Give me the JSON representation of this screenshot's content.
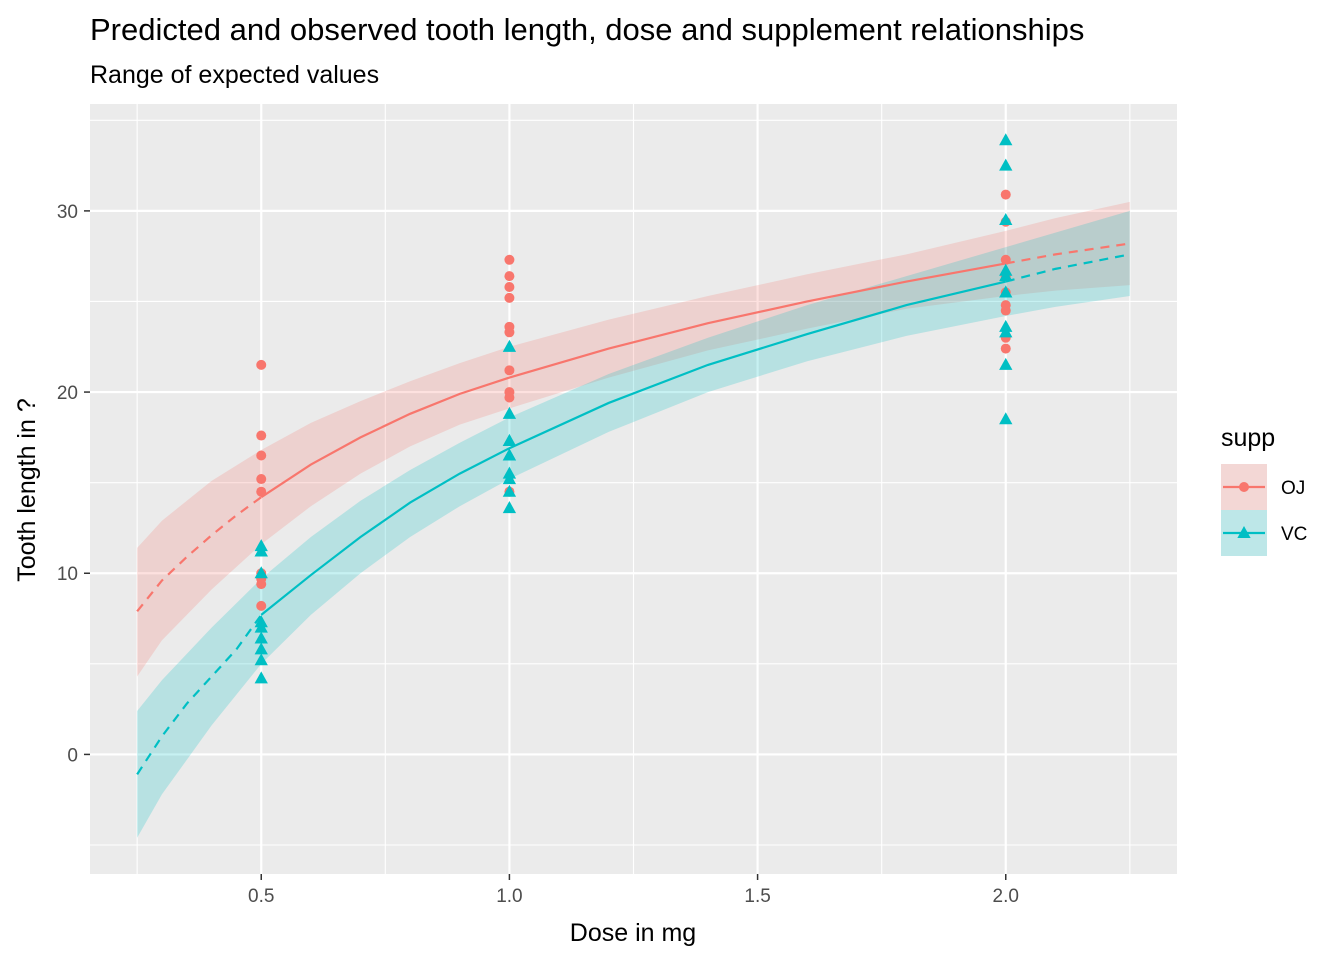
{
  "chart_data": {
    "type": "scatter",
    "title": "Predicted and observed tooth length, dose and supplement relationships",
    "subtitle": "Range of expected values",
    "xlabel": "Dose in mg",
    "ylabel": "Tooth length in ?",
    "xlim": [
      0.155,
      2.345
    ],
    "ylim": [
      -6.6,
      35.9
    ],
    "x_ticks": [
      0.5,
      1.0,
      1.5,
      2.0
    ],
    "x_tick_labels": [
      "0.5",
      "1.0",
      "1.5",
      "2.0"
    ],
    "y_ticks": [
      0,
      10,
      20,
      30
    ],
    "y_tick_labels": [
      "0",
      "10",
      "20",
      "30"
    ],
    "grid": true,
    "legend": {
      "title": "supp",
      "position": "right"
    },
    "series": [
      {
        "name": "OJ",
        "color": "#F8766D",
        "marker": "circle",
        "points": [
          {
            "x": 0.5,
            "y": 15.2
          },
          {
            "x": 0.5,
            "y": 21.5
          },
          {
            "x": 0.5,
            "y": 17.6
          },
          {
            "x": 0.5,
            "y": 9.7
          },
          {
            "x": 0.5,
            "y": 14.5
          },
          {
            "x": 0.5,
            "y": 10.0
          },
          {
            "x": 0.5,
            "y": 8.2
          },
          {
            "x": 0.5,
            "y": 9.4
          },
          {
            "x": 0.5,
            "y": 16.5
          },
          {
            "x": 0.5,
            "y": 9.7
          },
          {
            "x": 1.0,
            "y": 19.7
          },
          {
            "x": 1.0,
            "y": 23.3
          },
          {
            "x": 1.0,
            "y": 23.6
          },
          {
            "x": 1.0,
            "y": 26.4
          },
          {
            "x": 1.0,
            "y": 20.0
          },
          {
            "x": 1.0,
            "y": 25.2
          },
          {
            "x": 1.0,
            "y": 25.8
          },
          {
            "x": 1.0,
            "y": 21.2
          },
          {
            "x": 1.0,
            "y": 14.5
          },
          {
            "x": 1.0,
            "y": 27.3
          },
          {
            "x": 2.0,
            "y": 25.5
          },
          {
            "x": 2.0,
            "y": 26.4
          },
          {
            "x": 2.0,
            "y": 22.4
          },
          {
            "x": 2.0,
            "y": 24.5
          },
          {
            "x": 2.0,
            "y": 24.8
          },
          {
            "x": 2.0,
            "y": 30.9
          },
          {
            "x": 2.0,
            "y": 26.4
          },
          {
            "x": 2.0,
            "y": 27.3
          },
          {
            "x": 2.0,
            "y": 29.4
          },
          {
            "x": 2.0,
            "y": 23.0
          }
        ],
        "fit_curve": [
          {
            "x": 0.25,
            "y": 7.9
          },
          {
            "x": 0.3,
            "y": 9.6
          },
          {
            "x": 0.35,
            "y": 10.9
          },
          {
            "x": 0.4,
            "y": 12.1
          },
          {
            "x": 0.45,
            "y": 13.2
          },
          {
            "x": 0.5,
            "y": 14.2
          },
          {
            "x": 0.6,
            "y": 16.0
          },
          {
            "x": 0.7,
            "y": 17.5
          },
          {
            "x": 0.8,
            "y": 18.8
          },
          {
            "x": 0.9,
            "y": 19.9
          },
          {
            "x": 1.0,
            "y": 20.8
          },
          {
            "x": 1.2,
            "y": 22.4
          },
          {
            "x": 1.4,
            "y": 23.8
          },
          {
            "x": 1.6,
            "y": 25.0
          },
          {
            "x": 1.8,
            "y": 26.1
          },
          {
            "x": 2.0,
            "y": 27.1
          },
          {
            "x": 2.1,
            "y": 27.6
          },
          {
            "x": 2.25,
            "y": 28.2
          }
        ],
        "band_upper": [
          {
            "x": 0.25,
            "y": 11.4
          },
          {
            "x": 0.3,
            "y": 12.9
          },
          {
            "x": 0.4,
            "y": 15.1
          },
          {
            "x": 0.5,
            "y": 16.8
          },
          {
            "x": 0.6,
            "y": 18.3
          },
          {
            "x": 0.7,
            "y": 19.5
          },
          {
            "x": 0.8,
            "y": 20.6
          },
          {
            "x": 0.9,
            "y": 21.6
          },
          {
            "x": 1.0,
            "y": 22.5
          },
          {
            "x": 1.2,
            "y": 24.0
          },
          {
            "x": 1.4,
            "y": 25.3
          },
          {
            "x": 1.6,
            "y": 26.5
          },
          {
            "x": 1.8,
            "y": 27.6
          },
          {
            "x": 2.0,
            "y": 28.9
          },
          {
            "x": 2.1,
            "y": 29.6
          },
          {
            "x": 2.25,
            "y": 30.5
          }
        ],
        "band_lower": [
          {
            "x": 0.25,
            "y": 4.3
          },
          {
            "x": 0.3,
            "y": 6.3
          },
          {
            "x": 0.4,
            "y": 9.1
          },
          {
            "x": 0.5,
            "y": 11.6
          },
          {
            "x": 0.6,
            "y": 13.7
          },
          {
            "x": 0.7,
            "y": 15.5
          },
          {
            "x": 0.8,
            "y": 17.0
          },
          {
            "x": 0.9,
            "y": 18.2
          },
          {
            "x": 1.0,
            "y": 19.1
          },
          {
            "x": 1.2,
            "y": 20.8
          },
          {
            "x": 1.4,
            "y": 22.3
          },
          {
            "x": 1.6,
            "y": 23.5
          },
          {
            "x": 1.8,
            "y": 24.6
          },
          {
            "x": 2.0,
            "y": 25.3
          },
          {
            "x": 2.1,
            "y": 25.6
          },
          {
            "x": 2.25,
            "y": 25.9
          }
        ]
      },
      {
        "name": "VC",
        "color": "#00BFC4",
        "marker": "triangle",
        "points": [
          {
            "x": 0.5,
            "y": 4.2
          },
          {
            "x": 0.5,
            "y": 11.5
          },
          {
            "x": 0.5,
            "y": 7.3
          },
          {
            "x": 0.5,
            "y": 5.8
          },
          {
            "x": 0.5,
            "y": 6.4
          },
          {
            "x": 0.5,
            "y": 10.0
          },
          {
            "x": 0.5,
            "y": 11.2
          },
          {
            "x": 0.5,
            "y": 11.2
          },
          {
            "x": 0.5,
            "y": 5.2
          },
          {
            "x": 0.5,
            "y": 7.0
          },
          {
            "x": 1.0,
            "y": 16.5
          },
          {
            "x": 1.0,
            "y": 16.5
          },
          {
            "x": 1.0,
            "y": 15.2
          },
          {
            "x": 1.0,
            "y": 17.3
          },
          {
            "x": 1.0,
            "y": 22.5
          },
          {
            "x": 1.0,
            "y": 17.3
          },
          {
            "x": 1.0,
            "y": 13.6
          },
          {
            "x": 1.0,
            "y": 14.5
          },
          {
            "x": 1.0,
            "y": 18.8
          },
          {
            "x": 1.0,
            "y": 15.5
          },
          {
            "x": 2.0,
            "y": 23.6
          },
          {
            "x": 2.0,
            "y": 18.5
          },
          {
            "x": 2.0,
            "y": 33.9
          },
          {
            "x": 2.0,
            "y": 25.5
          },
          {
            "x": 2.0,
            "y": 26.4
          },
          {
            "x": 2.0,
            "y": 32.5
          },
          {
            "x": 2.0,
            "y": 26.7
          },
          {
            "x": 2.0,
            "y": 21.5
          },
          {
            "x": 2.0,
            "y": 23.3
          },
          {
            "x": 2.0,
            "y": 29.5
          }
        ],
        "fit_curve": [
          {
            "x": 0.25,
            "y": -1.1
          },
          {
            "x": 0.3,
            "y": 1.0
          },
          {
            "x": 0.35,
            "y": 2.8
          },
          {
            "x": 0.4,
            "y": 4.3
          },
          {
            "x": 0.45,
            "y": 5.8
          },
          {
            "x": 0.5,
            "y": 7.7
          },
          {
            "x": 0.6,
            "y": 9.9
          },
          {
            "x": 0.7,
            "y": 12.0
          },
          {
            "x": 0.8,
            "y": 13.9
          },
          {
            "x": 0.9,
            "y": 15.5
          },
          {
            "x": 1.0,
            "y": 16.9
          },
          {
            "x": 1.2,
            "y": 19.4
          },
          {
            "x": 1.4,
            "y": 21.5
          },
          {
            "x": 1.6,
            "y": 23.2
          },
          {
            "x": 1.8,
            "y": 24.8
          },
          {
            "x": 2.0,
            "y": 26.1
          },
          {
            "x": 2.1,
            "y": 26.8
          },
          {
            "x": 2.25,
            "y": 27.6
          }
        ],
        "band_upper": [
          {
            "x": 0.25,
            "y": 2.4
          },
          {
            "x": 0.3,
            "y": 4.1
          },
          {
            "x": 0.4,
            "y": 7.0
          },
          {
            "x": 0.5,
            "y": 9.7
          },
          {
            "x": 0.6,
            "y": 12.0
          },
          {
            "x": 0.7,
            "y": 14.0
          },
          {
            "x": 0.8,
            "y": 15.7
          },
          {
            "x": 0.9,
            "y": 17.2
          },
          {
            "x": 1.0,
            "y": 18.6
          },
          {
            "x": 1.2,
            "y": 21.0
          },
          {
            "x": 1.4,
            "y": 23.0
          },
          {
            "x": 1.6,
            "y": 24.8
          },
          {
            "x": 1.8,
            "y": 26.4
          },
          {
            "x": 2.0,
            "y": 28.0
          },
          {
            "x": 2.1,
            "y": 28.8
          },
          {
            "x": 2.25,
            "y": 30.0
          }
        ],
        "band_lower": [
          {
            "x": 0.25,
            "y": -4.6
          },
          {
            "x": 0.3,
            "y": -2.2
          },
          {
            "x": 0.4,
            "y": 1.6
          },
          {
            "x": 0.5,
            "y": 5.0
          },
          {
            "x": 0.6,
            "y": 7.7
          },
          {
            "x": 0.7,
            "y": 10.0
          },
          {
            "x": 0.8,
            "y": 12.0
          },
          {
            "x": 0.9,
            "y": 13.7
          },
          {
            "x": 1.0,
            "y": 15.2
          },
          {
            "x": 1.2,
            "y": 17.8
          },
          {
            "x": 1.4,
            "y": 20.0
          },
          {
            "x": 1.6,
            "y": 21.7
          },
          {
            "x": 1.8,
            "y": 23.1
          },
          {
            "x": 2.0,
            "y": 24.2
          },
          {
            "x": 2.1,
            "y": 24.7
          },
          {
            "x": 2.25,
            "y": 25.3
          }
        ]
      }
    ],
    "observed_range": [
      0.5,
      2.0
    ]
  }
}
